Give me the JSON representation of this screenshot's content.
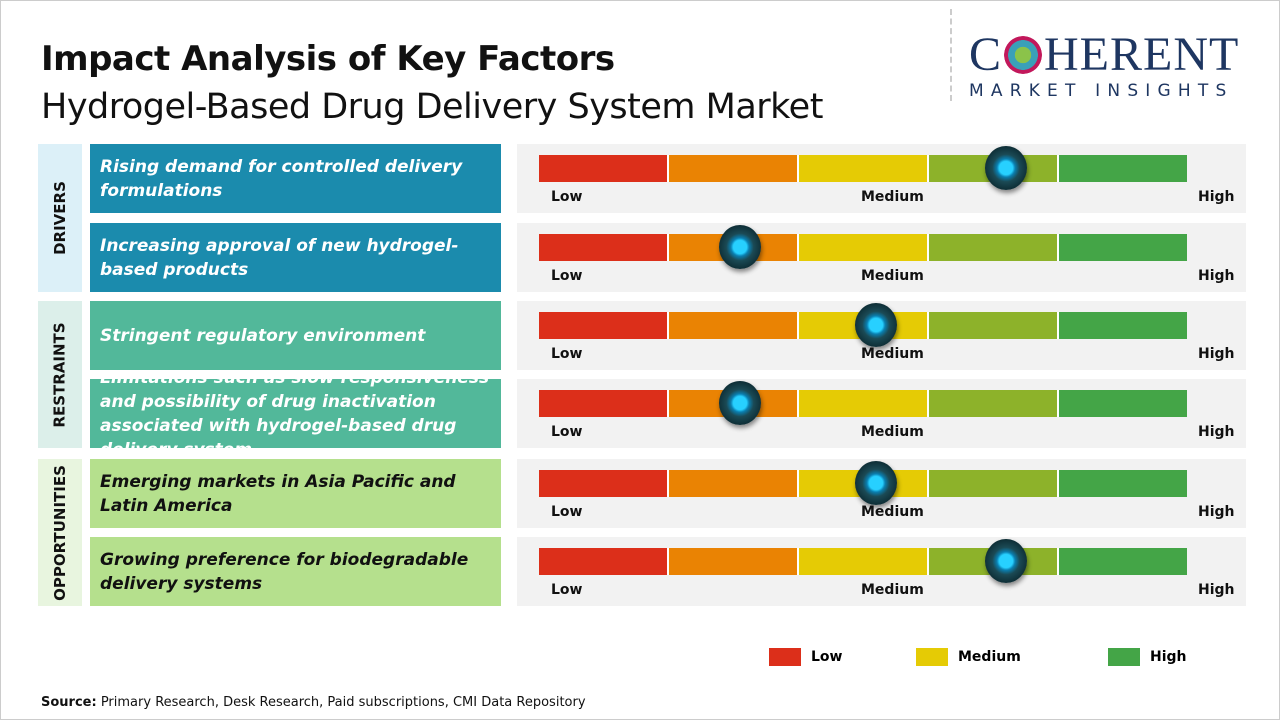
{
  "header": {
    "title": "Impact Analysis of Key Factors",
    "subtitle": "Hydrogel-Based Drug Delivery System Market"
  },
  "logo": {
    "line1_a": "C",
    "line1_b": "HERENT",
    "line2": "MARKET INSIGHTS"
  },
  "colors": {
    "segments": [
      "#dc2f1a",
      "#ea8303",
      "#e5cb05",
      "#8db22a",
      "#44a547"
    ],
    "drivers": "#1b8bad",
    "restraints": "#52b89a",
    "opportunities": "#b5e08d",
    "drivers_side": "#dcf0f8",
    "restraints_side": "#dcefea",
    "opportunities_side": "#e8f5df"
  },
  "scale": {
    "low": "Low",
    "medium": "Medium",
    "high": "High"
  },
  "categories": [
    {
      "label": "DRIVERS",
      "factors": [
        {
          "text": "Rising demand for controlled delivery formulations",
          "impact_pct": 72
        },
        {
          "text": "Increasing approval of new hydrogel-based products",
          "impact_pct": 31
        }
      ]
    },
    {
      "label": "RESTRAINTS",
      "factors": [
        {
          "text": "Stringent regulatory environment",
          "impact_pct": 52
        },
        {
          "text": "Limitations such as slow responsiveness and possibility of drug inactivation associated with hydrogel-based drug delivery system",
          "impact_pct": 31
        }
      ]
    },
    {
      "label": "OPPORTUNITIES",
      "factors": [
        {
          "text": "Emerging markets in Asia Pacific and Latin America",
          "impact_pct": 52
        },
        {
          "text": "Growing preference for biodegradable delivery systems",
          "impact_pct": 72
        }
      ]
    }
  ],
  "legend": [
    {
      "label": "Low",
      "color": "#dc2f1a"
    },
    {
      "label": "Medium",
      "color": "#e5cb05"
    },
    {
      "label": "High",
      "color": "#44a547"
    }
  ],
  "source": {
    "label": "Source:",
    "text": " Primary Research, Desk Research, Paid subscriptions, CMI Data Repository"
  }
}
